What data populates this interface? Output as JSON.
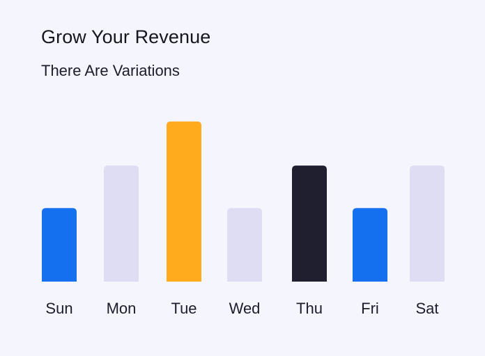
{
  "header": {
    "title": "Grow Your Revenue",
    "subtitle": "There Are Variations"
  },
  "chart_data": {
    "type": "bar",
    "title": "Grow Your Revenue",
    "subtitle": "There Are Variations",
    "categories": [
      "Sun",
      "Mon",
      "Tue",
      "Wed",
      "Thu",
      "Fri",
      "Sat"
    ],
    "values": [
      45,
      71,
      98,
      45,
      71,
      45,
      71
    ],
    "colors": [
      "#1570ef",
      "#dfddf3",
      "#ffab1d",
      "#dfddf3",
      "#1f1f2f",
      "#1570ef",
      "#dfddf3"
    ],
    "ylim": [
      0,
      100
    ],
    "grid": false,
    "legend": "none",
    "xlabel": "",
    "ylabel": ""
  }
}
